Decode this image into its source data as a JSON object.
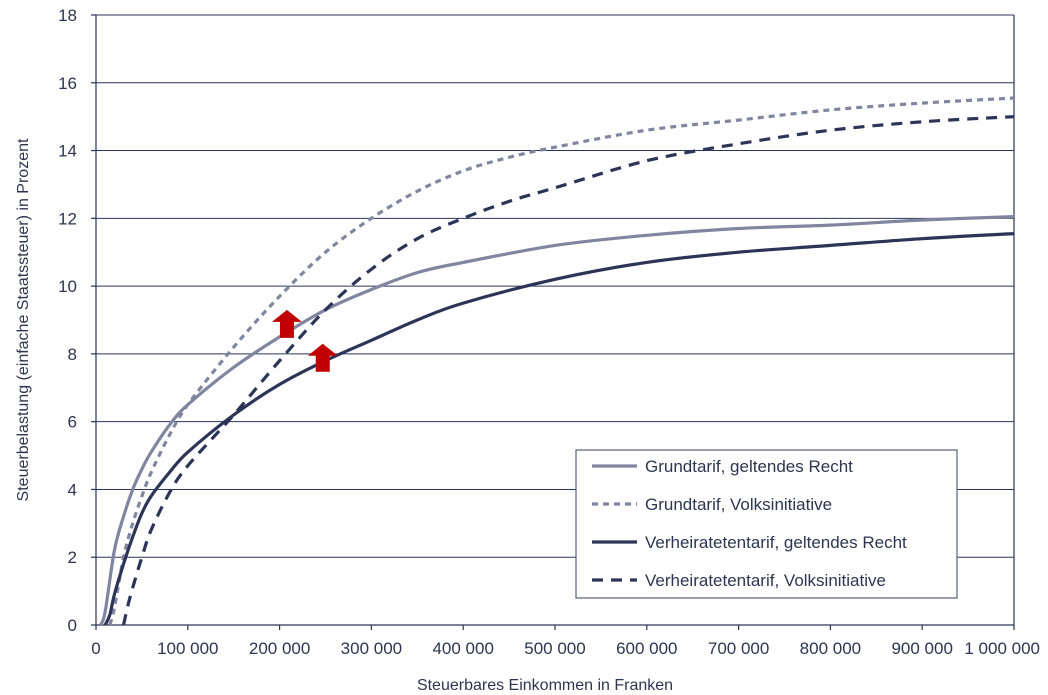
{
  "chart_data": {
    "type": "line",
    "title": "",
    "xlabel": "Steuerbares Einkommen in Franken",
    "ylabel": "Steuerbelastung (einfache Staatssteuer) in Prozent",
    "xlim": [
      0,
      1000000
    ],
    "ylim": [
      0,
      18
    ],
    "x_ticks": [
      0,
      100000,
      200000,
      300000,
      400000,
      500000,
      600000,
      700000,
      800000,
      900000,
      1000000
    ],
    "x_tick_labels": [
      "0",
      "100 000",
      "200 000",
      "300 000",
      "400 000",
      "500 000",
      "600 000",
      "700 000",
      "800 000",
      "900 000",
      "1 000 000"
    ],
    "y_ticks": [
      0,
      2,
      4,
      6,
      8,
      10,
      12,
      14,
      16,
      18
    ],
    "y_tick_labels": [
      "0",
      "2",
      "4",
      "6",
      "8",
      "10",
      "12",
      "14",
      "16",
      "18"
    ],
    "grid": "horizontal",
    "legend_position": "bottom-right",
    "series": [
      {
        "name": "Grundtarif, geltendes Recht",
        "color": "#8086a0",
        "style": "solid",
        "x": [
          5000,
          10000,
          20000,
          30000,
          40000,
          50000,
          60000,
          80000,
          100000,
          150000,
          200000,
          250000,
          300000,
          350000,
          400000,
          500000,
          600000,
          700000,
          800000,
          900000,
          1000000
        ],
        "y": [
          0,
          0.4,
          2.2,
          3.2,
          4.0,
          4.6,
          5.1,
          5.9,
          6.5,
          7.6,
          8.5,
          9.3,
          9.9,
          10.4,
          10.7,
          11.2,
          11.5,
          11.7,
          11.8,
          11.95,
          12.05
        ]
      },
      {
        "name": "Grundtarif, Volksinitiative",
        "color": "#8086a0",
        "style": "dotted",
        "x": [
          15000,
          20000,
          30000,
          40000,
          50000,
          60000,
          80000,
          100000,
          150000,
          200000,
          250000,
          300000,
          350000,
          400000,
          450000,
          500000,
          600000,
          700000,
          800000,
          900000,
          1000000
        ],
        "y": [
          0,
          0.5,
          2.0,
          3.0,
          3.8,
          4.5,
          5.6,
          6.5,
          8.2,
          9.7,
          11.0,
          12.0,
          12.8,
          13.4,
          13.8,
          14.1,
          14.6,
          14.9,
          15.2,
          15.4,
          15.55
        ]
      },
      {
        "name": "Verheiratetentarif, geltendes Recht",
        "color": "#2c3457",
        "style": "solid",
        "x": [
          10000,
          15000,
          20000,
          30000,
          40000,
          50000,
          60000,
          80000,
          100000,
          150000,
          200000,
          250000,
          300000,
          350000,
          400000,
          500000,
          600000,
          700000,
          800000,
          900000,
          1000000
        ],
        "y": [
          0,
          0.3,
          0.9,
          1.8,
          2.6,
          3.3,
          3.8,
          4.5,
          5.1,
          6.2,
          7.1,
          7.8,
          8.4,
          9.0,
          9.5,
          10.2,
          10.7,
          11.0,
          11.2,
          11.4,
          11.55
        ]
      },
      {
        "name": "Verheiratetentarif, Volksinitiative",
        "color": "#2c3457",
        "style": "dashed",
        "x": [
          30000,
          35000,
          40000,
          50000,
          60000,
          80000,
          100000,
          150000,
          200000,
          250000,
          300000,
          350000,
          400000,
          450000,
          500000,
          600000,
          700000,
          800000,
          900000,
          1000000
        ],
        "y": [
          0,
          0.6,
          1.1,
          2.0,
          2.8,
          3.9,
          4.7,
          6.2,
          7.8,
          9.3,
          10.5,
          11.4,
          12.0,
          12.5,
          12.9,
          13.7,
          14.2,
          14.6,
          14.85,
          15.0
        ]
      }
    ],
    "annotations": [
      {
        "type": "arrow-up",
        "color": "#c00000",
        "x": 208000,
        "y": 9.3
      },
      {
        "type": "arrow-up",
        "color": "#c00000",
        "x": 247000,
        "y": 8.3
      }
    ]
  }
}
